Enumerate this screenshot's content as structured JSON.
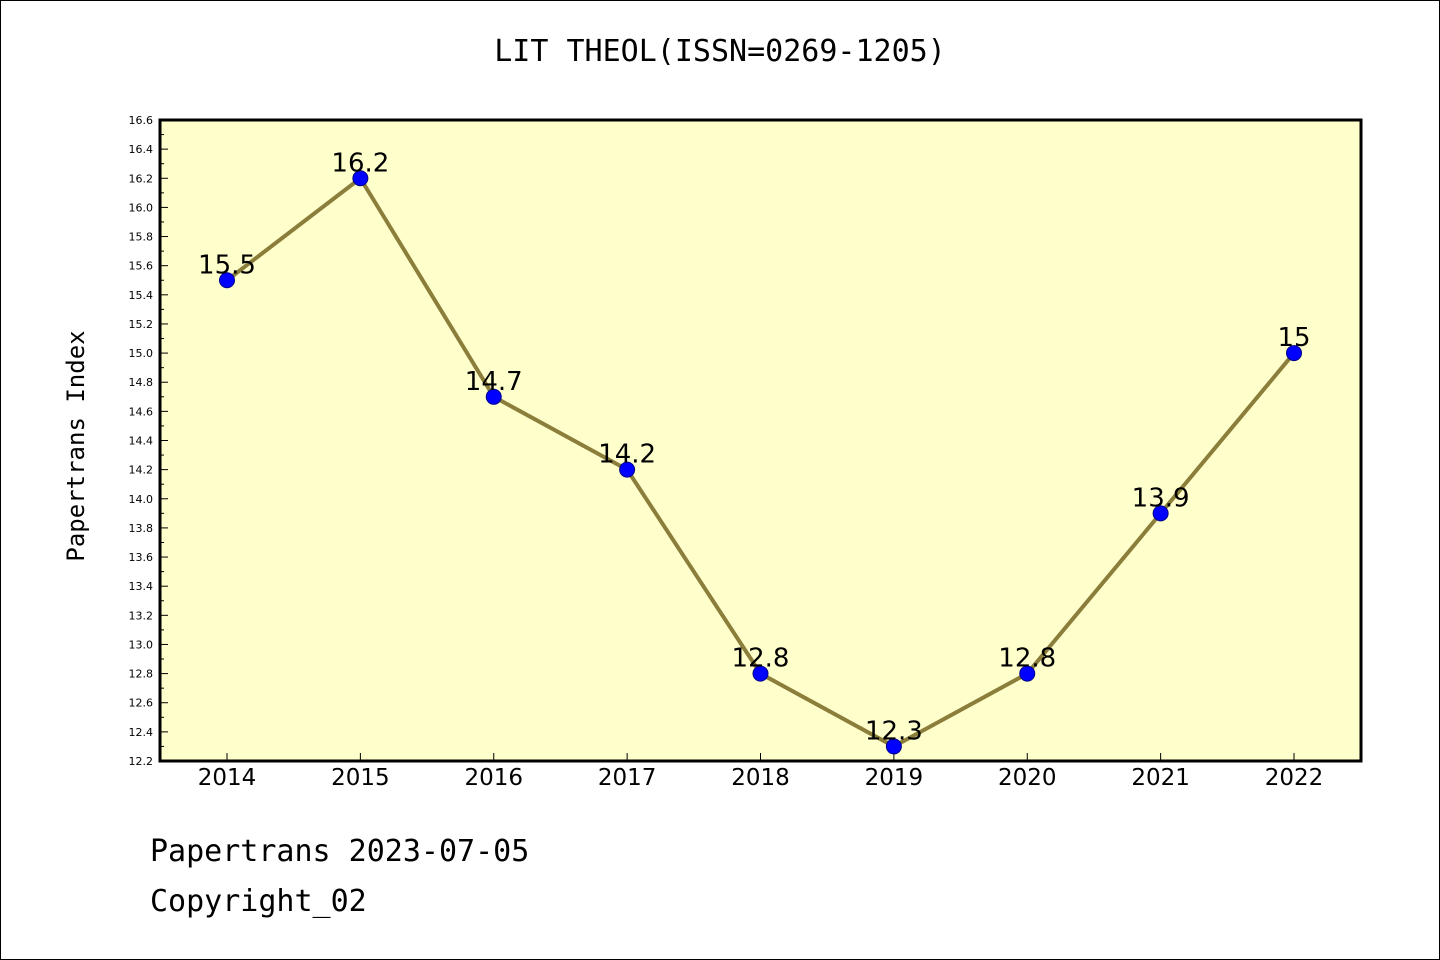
{
  "chart_data": {
    "type": "line",
    "title": "LIT THEOL(ISSN=0269-1205)",
    "xlabel": "",
    "ylabel": "Papertrans Index",
    "categories": [
      "2014",
      "2015",
      "2016",
      "2017",
      "2018",
      "2019",
      "2020",
      "2021",
      "2022"
    ],
    "series": [
      {
        "values": [
          15.5,
          16.2,
          14.7,
          14.2,
          12.8,
          12.3,
          12.8,
          13.9,
          15
        ],
        "data_labels": [
          "15.5",
          "16.2",
          "14.7",
          "14.2",
          "12.8",
          "12.3",
          "12.8",
          "13.9",
          "15"
        ]
      }
    ],
    "ylim": [
      12.2,
      16.6
    ],
    "yticks": [
      "12.2",
      "12.4",
      "12.6",
      "12.8",
      "13.0",
      "13.2",
      "13.4",
      "13.6",
      "13.8",
      "14.0",
      "14.2",
      "14.4",
      "14.6",
      "14.8",
      "15.0",
      "15.2",
      "15.4",
      "15.6",
      "15.8",
      "16.0",
      "16.2",
      "16.4",
      "16.6"
    ],
    "grid": false,
    "legend": "none",
    "colors": {
      "plot_background": "#ffffcc",
      "line": "#8b7d3a",
      "marker": "#0000ff"
    }
  },
  "footer": {
    "date_line": "Papertrans 2023-07-05",
    "copyright": "Copyright_02"
  }
}
